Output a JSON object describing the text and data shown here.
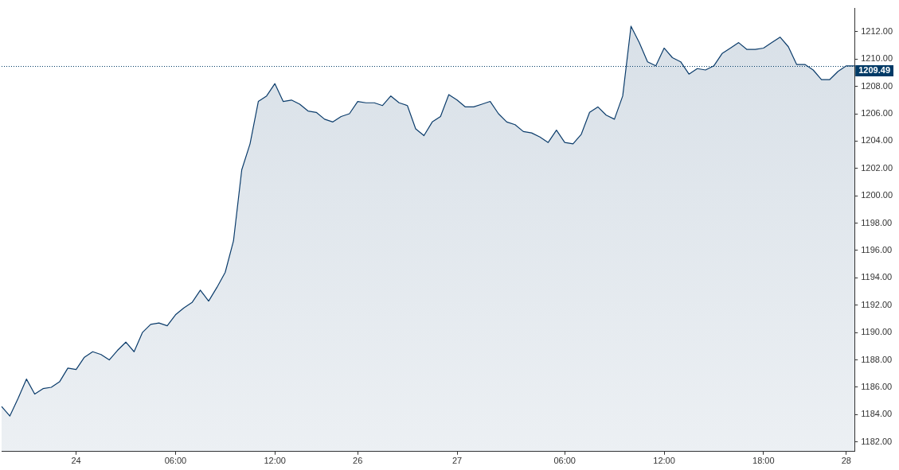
{
  "chart_data": {
    "type": "area",
    "categories": [
      null,
      null,
      null,
      null,
      null,
      null,
      null,
      null,
      null,
      "24",
      null,
      null,
      null,
      null,
      null,
      null,
      null,
      null,
      null,
      null,
      null,
      "06:00",
      null,
      null,
      null,
      null,
      null,
      null,
      null,
      null,
      null,
      null,
      null,
      "12:00",
      null,
      null,
      null,
      null,
      null,
      null,
      null,
      null,
      null,
      "26",
      null,
      null,
      null,
      null,
      null,
      null,
      null,
      null,
      null,
      null,
      null,
      "27",
      null,
      null,
      null,
      null,
      null,
      null,
      null,
      null,
      null,
      null,
      null,
      null,
      "06:00",
      null,
      null,
      null,
      null,
      null,
      null,
      null,
      null,
      null,
      null,
      null,
      "12:00",
      null,
      null,
      null,
      null,
      null,
      null,
      null,
      null,
      null,
      null,
      null,
      "18:00",
      null,
      null,
      null,
      null,
      null,
      null,
      null,
      null,
      null,
      "28",
      null
    ],
    "series": [
      {
        "color": "#0b3c6b",
        "values": [
          1184.6,
          1183.9,
          1185.2,
          1186.6,
          1185.5,
          1185.9,
          1186.0,
          1186.4,
          1187.4,
          1187.3,
          1188.2,
          1188.6,
          1188.4,
          1188.0,
          1188.7,
          1189.3,
          1188.6,
          1190.0,
          1190.6,
          1190.7,
          1190.5,
          1191.3,
          1191.8,
          1192.2,
          1193.1,
          1192.3,
          1193.3,
          1194.4,
          1196.7,
          1201.9,
          1203.8,
          1206.9,
          1207.3,
          1208.2,
          1206.9,
          1207.0,
          1206.7,
          1206.2,
          1206.1,
          1205.6,
          1205.4,
          1205.8,
          1206.0,
          1206.9,
          1206.8,
          1206.8,
          1206.6,
          1207.3,
          1206.8,
          1206.6,
          1204.9,
          1204.4,
          1205.4,
          1205.8,
          1207.4,
          1207.0,
          1206.5,
          1206.5,
          1206.7,
          1206.9,
          1206.0,
          1205.4,
          1205.2,
          1204.7,
          1204.6,
          1204.3,
          1203.9,
          1204.8,
          1203.9,
          1203.8,
          1204.5,
          1206.1,
          1206.5,
          1205.9,
          1205.6,
          1207.3,
          1212.4,
          1211.2,
          1209.8,
          1209.5,
          1210.8,
          1210.1,
          1209.8,
          1208.9,
          1209.3,
          1209.2,
          1209.5,
          1210.4,
          1210.8,
          1211.2,
          1210.7,
          1210.7,
          1210.8,
          1211.2,
          1211.6,
          1210.9,
          1209.6,
          1209.6,
          1209.2,
          1208.5,
          1208.5,
          1209.1,
          1209.5,
          1209.5
        ]
      }
    ],
    "ylim": [
      1181.3,
      1213.7
    ],
    "yticks": [
      {
        "value": 1182,
        "label": "1182.00"
      },
      {
        "value": 1184,
        "label": "1184.00"
      },
      {
        "value": 1186,
        "label": "1186.00"
      },
      {
        "value": 1188,
        "label": "1188.00"
      },
      {
        "value": 1190,
        "label": "1190.00"
      },
      {
        "value": 1192,
        "label": "1192.00"
      },
      {
        "value": 1194,
        "label": "1194.00"
      },
      {
        "value": 1196,
        "label": "1196.00"
      },
      {
        "value": 1198,
        "label": "1198.00"
      },
      {
        "value": 1200,
        "label": "1200.00"
      },
      {
        "value": 1202,
        "label": "1202.00"
      },
      {
        "value": 1204,
        "label": "1204.00"
      },
      {
        "value": 1206,
        "label": "1206.00"
      },
      {
        "value": 1208,
        "label": "1208.00"
      },
      {
        "value": 1210,
        "label": "1210.00"
      },
      {
        "value": 1212,
        "label": "1212.00"
      }
    ],
    "ref_lines": [
      {
        "axis": "y",
        "value": 1209.49,
        "label": "1209.49",
        "color": "#003a66",
        "line_style": "dotted"
      }
    ],
    "grid": false,
    "legend": false
  }
}
